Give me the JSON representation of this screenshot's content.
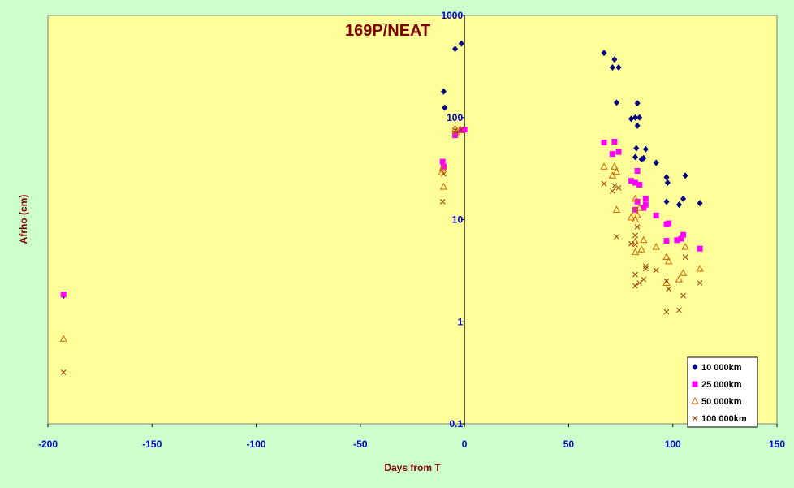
{
  "chart_data": {
    "type": "scatter",
    "title": "169P/NEAT",
    "xlabel": "Days from T",
    "ylabel": "Afrho (cm)",
    "xlim": [
      -200,
      150
    ],
    "ylim": [
      0.1,
      1000
    ],
    "y_scale": "log",
    "x_ticks": [
      "-200",
      "-150",
      "-100",
      "-50",
      "0",
      "50",
      "100",
      "150"
    ],
    "y_ticks": [
      "0.1",
      "1",
      "10",
      "100",
      "1000"
    ],
    "legend_position": "bottom-right",
    "colors": {
      "background": "#ccffcc",
      "plot_area": "#ffff99",
      "axis_text": "#0000cc",
      "title_text": "#800000"
    },
    "series": [
      {
        "name": "10 000km",
        "marker": "diamond",
        "color": "#000080",
        "points": [
          [
            -192.5,
            1.8
          ],
          [
            -10,
            180
          ],
          [
            -9.5,
            125
          ],
          [
            -4.5,
            470
          ],
          [
            -1.5,
            530
          ],
          [
            67,
            430
          ],
          [
            71,
            310
          ],
          [
            72,
            370
          ],
          [
            74,
            310
          ],
          [
            73,
            140
          ],
          [
            80,
            97
          ],
          [
            82,
            100
          ],
          [
            82.5,
            50
          ],
          [
            83,
            138
          ],
          [
            83,
            83
          ],
          [
            84,
            100
          ],
          [
            82,
            41
          ],
          [
            85,
            39
          ],
          [
            86,
            40
          ],
          [
            87,
            49
          ],
          [
            92,
            36
          ],
          [
            97,
            26
          ],
          [
            97.5,
            23
          ],
          [
            97,
            15
          ],
          [
            103,
            14
          ],
          [
            105,
            16
          ],
          [
            106,
            27
          ],
          [
            113,
            14.5
          ]
        ]
      },
      {
        "name": "25 000km",
        "marker": "square",
        "color": "#ff00ff",
        "points": [
          [
            -192.5,
            1.85
          ],
          [
            -10.5,
            37
          ],
          [
            -10,
            33
          ],
          [
            -4.5,
            67
          ],
          [
            -1.5,
            75
          ],
          [
            0,
            76
          ],
          [
            67,
            57
          ],
          [
            71,
            44
          ],
          [
            72,
            58
          ],
          [
            74,
            46
          ],
          [
            80,
            24
          ],
          [
            82,
            23
          ],
          [
            83,
            15
          ],
          [
            83,
            30
          ],
          [
            84,
            22
          ],
          [
            82,
            12.5
          ],
          [
            86,
            13
          ],
          [
            87,
            14
          ],
          [
            87,
            16
          ],
          [
            92,
            11
          ],
          [
            97,
            9
          ],
          [
            98,
            9.2
          ],
          [
            97,
            6.2
          ],
          [
            102,
            6.3
          ],
          [
            104,
            6.5
          ],
          [
            105,
            7.1
          ],
          [
            113,
            5.2
          ]
        ]
      },
      {
        "name": "50 000km",
        "marker": "triangle",
        "color": "#cc6600",
        "points": [
          [
            -192.5,
            0.68
          ],
          [
            -11,
            29
          ],
          [
            -10.5,
            32
          ],
          [
            -10,
            21
          ],
          [
            -4.5,
            78
          ],
          [
            -4,
            72
          ],
          [
            -2,
            76
          ],
          [
            67,
            33
          ],
          [
            71,
            27
          ],
          [
            72,
            33
          ],
          [
            73,
            29.5
          ],
          [
            73,
            12.5
          ],
          [
            80,
            10.5
          ],
          [
            82,
            16
          ],
          [
            82,
            12
          ],
          [
            83,
            11
          ],
          [
            82,
            10
          ],
          [
            84,
            13
          ],
          [
            85,
            5.1
          ],
          [
            86,
            6.3
          ],
          [
            82,
            6.1
          ],
          [
            82,
            4.8
          ],
          [
            92,
            5.4
          ],
          [
            97,
            4.3
          ],
          [
            98,
            3.9
          ],
          [
            97,
            2.4
          ],
          [
            103,
            2.6
          ],
          [
            105,
            3.0
          ],
          [
            106,
            5.4
          ],
          [
            113,
            3.3
          ]
        ]
      },
      {
        "name": "100 000km",
        "marker": "cross",
        "color": "#993300",
        "points": [
          [
            -192.5,
            0.32
          ],
          [
            -10.5,
            15
          ],
          [
            -10,
            28
          ],
          [
            -4.5,
            75
          ],
          [
            -1.5,
            76
          ],
          [
            67,
            22.5
          ],
          [
            71,
            19
          ],
          [
            72,
            21.5
          ],
          [
            74,
            20.5
          ],
          [
            73,
            6.8
          ],
          [
            80,
            5.8
          ],
          [
            82,
            7
          ],
          [
            82,
            5.7
          ],
          [
            83,
            8.5
          ],
          [
            82,
            2.9
          ],
          [
            84,
            2.4
          ],
          [
            82,
            2.25
          ],
          [
            86,
            2.6
          ],
          [
            87,
            3.5
          ],
          [
            87,
            3.3
          ],
          [
            92,
            3.2
          ],
          [
            97,
            2.5
          ],
          [
            98,
            2.1
          ],
          [
            97,
            1.25
          ],
          [
            103,
            1.3
          ],
          [
            105,
            1.8
          ],
          [
            106,
            4.3
          ],
          [
            113,
            2.4
          ]
        ]
      }
    ]
  }
}
